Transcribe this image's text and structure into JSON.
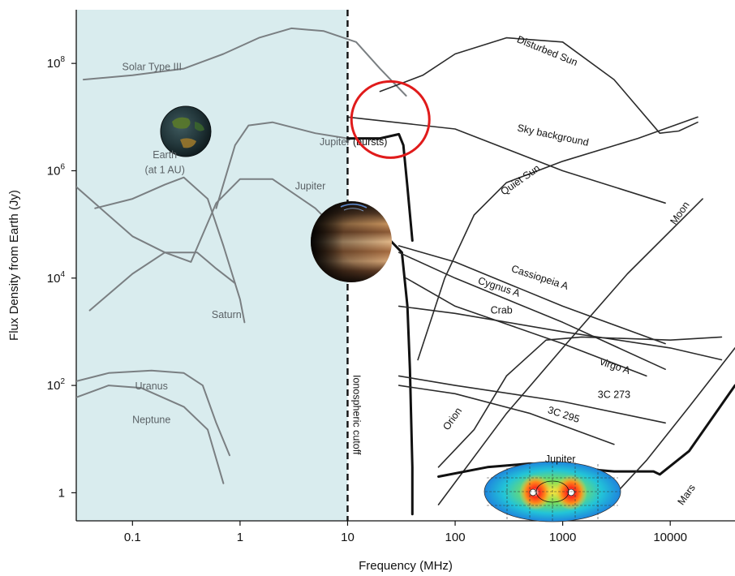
{
  "chart_data": {
    "type": "line",
    "title": "",
    "xlabel": "Frequency (MHz)",
    "ylabel": "Flux Density from Earth (Jy)",
    "x_scale": "log",
    "y_scale": "log",
    "xlim": [
      0.03,
      40000
    ],
    "ylim": [
      0.3,
      1000000000
    ],
    "x_ticks": [
      {
        "value": 0.1,
        "label": "0.1"
      },
      {
        "value": 1,
        "label": "1"
      },
      {
        "value": 10,
        "label": "10"
      },
      {
        "value": 100,
        "label": "100"
      },
      {
        "value": 1000,
        "label": "1000"
      },
      {
        "value": 10000,
        "label": "10000"
      }
    ],
    "y_ticks": [
      {
        "value": 1,
        "label": "1",
        "exp": ""
      },
      {
        "value": 100,
        "label": "10",
        "exp": "2"
      },
      {
        "value": 10000,
        "label": "10",
        "exp": "4"
      },
      {
        "value": 1000000,
        "label": "10",
        "exp": "6"
      },
      {
        "value": 100000000,
        "label": "10",
        "exp": "8"
      }
    ],
    "shaded_region": {
      "x": [
        0.03,
        10
      ],
      "color": "#d9ecee"
    },
    "cutoff": {
      "x": 10,
      "label": "Ionospheric cutoff"
    },
    "highlight_circle": {
      "x": 25,
      "y": 9000000,
      "color": "#e01b1b"
    },
    "series": [
      {
        "name": "Solar Type III",
        "style": "gray",
        "points": [
          [
            0.035,
            50000000
          ],
          [
            0.1,
            60000000
          ],
          [
            0.3,
            80000000
          ],
          [
            0.7,
            150000000
          ],
          [
            1.5,
            300000000
          ],
          [
            3,
            450000000
          ],
          [
            6,
            400000000
          ],
          [
            12,
            250000000
          ],
          [
            20,
            80000000
          ],
          [
            35,
            25000000
          ]
        ]
      },
      {
        "name": "Earth (at 1 AU)",
        "style": "gray",
        "points": [
          [
            0.045,
            200000
          ],
          [
            0.1,
            300000
          ],
          [
            0.2,
            550000
          ],
          [
            0.3,
            750000
          ],
          [
            0.5,
            300000
          ],
          [
            0.7,
            40000
          ],
          [
            1,
            4000
          ],
          [
            1.1,
            1500
          ]
        ]
      },
      {
        "name": "Saturn",
        "style": "gray",
        "points": [
          [
            0.04,
            2500
          ],
          [
            0.1,
            12000
          ],
          [
            0.2,
            30000
          ],
          [
            0.4,
            30000
          ],
          [
            0.6,
            15000
          ],
          [
            0.9,
            8000
          ]
        ]
      },
      {
        "name": "Uranus",
        "style": "gray",
        "points": [
          [
            0.03,
            120
          ],
          [
            0.06,
            170
          ],
          [
            0.15,
            190
          ],
          [
            0.3,
            170
          ],
          [
            0.45,
            100
          ],
          [
            0.6,
            20
          ],
          [
            0.8,
            5
          ]
        ]
      },
      {
        "name": "Neptune",
        "style": "gray",
        "points": [
          [
            0.03,
            60
          ],
          [
            0.06,
            100
          ],
          [
            0.12,
            90
          ],
          [
            0.3,
            40
          ],
          [
            0.5,
            15
          ],
          [
            0.7,
            1.5
          ]
        ]
      },
      {
        "name": "Jupiter (bursts)",
        "style": "gray",
        "points": [
          [
            0.6,
            200000
          ],
          [
            0.9,
            3000000
          ],
          [
            1.2,
            7000000
          ],
          [
            2,
            8000000
          ],
          [
            5,
            5000000
          ],
          [
            10,
            4000000
          ],
          [
            20,
            4000000
          ]
        ]
      },
      {
        "name": "Jupiter",
        "style": "gray",
        "points": [
          [
            0.03,
            500000
          ],
          [
            0.1,
            60000
          ],
          [
            0.2,
            30000
          ],
          [
            0.35,
            20000
          ],
          [
            0.6,
            250000
          ],
          [
            1,
            700000
          ],
          [
            2,
            700000
          ],
          [
            5,
            200000
          ],
          [
            10,
            50000
          ],
          [
            16,
            40000
          ]
        ]
      },
      {
        "name": "Jupiter (bursts)",
        "style": "bold",
        "points": [
          [
            10,
            4000000
          ],
          [
            20,
            4000000
          ],
          [
            30,
            4800000
          ],
          [
            33,
            3000000
          ],
          [
            36,
            500000
          ],
          [
            40,
            50000
          ]
        ]
      },
      {
        "name": "Jupiter",
        "style": "bold",
        "points": [
          [
            16,
            40000
          ],
          [
            25,
            50000
          ],
          [
            32,
            30000
          ],
          [
            36,
            3000
          ],
          [
            38,
            200
          ],
          [
            40,
            3
          ],
          [
            40,
            0.4
          ]
        ]
      },
      {
        "name": "Disturbed Sun",
        "style": "dark",
        "points": [
          [
            20,
            30000000
          ],
          [
            50,
            60000000
          ],
          [
            100,
            150000000
          ],
          [
            300,
            300000000
          ],
          [
            1000,
            250000000
          ],
          [
            3000,
            50000000
          ],
          [
            8000,
            5000000
          ],
          [
            12000,
            5500000
          ],
          [
            18000,
            8000000
          ]
        ]
      },
      {
        "name": "Sky background",
        "style": "dark",
        "points": [
          [
            10,
            10000000
          ],
          [
            100,
            6000000
          ],
          [
            1000,
            1000000
          ],
          [
            9000,
            250000
          ]
        ]
      },
      {
        "name": "Quiet Sun",
        "style": "dark",
        "points": [
          [
            45,
            300
          ],
          [
            80,
            10000
          ],
          [
            150,
            150000
          ],
          [
            300,
            600000
          ],
          [
            1000,
            1500000
          ],
          [
            5000,
            4000000
          ],
          [
            18000,
            10000000
          ]
        ]
      },
      {
        "name": "Moon",
        "style": "dark",
        "points": [
          [
            70,
            0.6
          ],
          [
            300,
            30
          ],
          [
            1000,
            500
          ],
          [
            4000,
            12000
          ],
          [
            20000,
            300000
          ]
        ]
      },
      {
        "name": "Cassiopeia A",
        "style": "dark",
        "points": [
          [
            30,
            40000
          ],
          [
            100,
            20000
          ],
          [
            1000,
            3000
          ],
          [
            9000,
            600
          ]
        ]
      },
      {
        "name": "Cygnus A",
        "style": "dark",
        "points": [
          [
            30,
            30000
          ],
          [
            100,
            10000
          ],
          [
            1000,
            1500
          ],
          [
            9000,
            200
          ]
        ]
      },
      {
        "name": "Crab",
        "style": "dark",
        "points": [
          [
            30,
            3000
          ],
          [
            100,
            2200
          ],
          [
            1000,
            1000
          ],
          [
            10000,
            500
          ],
          [
            30000,
            300
          ]
        ]
      },
      {
        "name": "virgo A",
        "style": "dark",
        "points": [
          [
            35,
            10000
          ],
          [
            100,
            3000
          ],
          [
            1000,
            600
          ],
          [
            6000,
            150
          ]
        ]
      },
      {
        "name": "3C 273",
        "style": "dark",
        "points": [
          [
            30,
            150
          ],
          [
            100,
            100
          ],
          [
            1000,
            50
          ],
          [
            9000,
            20
          ]
        ]
      },
      {
        "name": "3C 295",
        "style": "dark",
        "points": [
          [
            30,
            100
          ],
          [
            100,
            70
          ],
          [
            500,
            30
          ],
          [
            3000,
            8
          ]
        ]
      },
      {
        "name": "Orion",
        "style": "dark",
        "points": [
          [
            70,
            3
          ],
          [
            150,
            15
          ],
          [
            300,
            150
          ],
          [
            700,
            700
          ],
          [
            1500,
            800
          ],
          [
            10000,
            700
          ],
          [
            30000,
            800
          ]
        ]
      },
      {
        "name": "Jupiter",
        "style": "bold",
        "points": [
          [
            70,
            2
          ],
          [
            200,
            3
          ],
          [
            500,
            3.5
          ],
          [
            1000,
            3
          ],
          [
            3000,
            2.5
          ],
          [
            7000,
            2.5
          ],
          [
            8000,
            2.2
          ],
          [
            15000,
            6
          ],
          [
            40000,
            100
          ]
        ]
      },
      {
        "name": "Mars",
        "style": "dark",
        "points": [
          [
            2500,
            0.6
          ],
          [
            6000,
            4
          ],
          [
            15000,
            40
          ],
          [
            40000,
            500
          ]
        ]
      }
    ],
    "labels": [
      {
        "text": "Solar Type III",
        "x": 0.08,
        "y": 75000000,
        "rot": 0,
        "anchor": "start",
        "style": "gray"
      },
      {
        "text": "Earth",
        "x": 0.2,
        "y": 1700000,
        "rot": 0,
        "anchor": "middle",
        "style": "gray"
      },
      {
        "text": "(at 1 AU)",
        "x": 0.2,
        "y": 900000,
        "rot": 0,
        "anchor": "middle",
        "style": "gray"
      },
      {
        "text": "Jupiter",
        "x": 4.5,
        "y": 450000,
        "rot": 0,
        "anchor": "middle",
        "style": "gray"
      },
      {
        "text": "Saturn",
        "x": 0.75,
        "y": 1800,
        "rot": 0,
        "anchor": "middle",
        "style": "gray"
      },
      {
        "text": "Uranus",
        "x": 0.15,
        "y": 85,
        "rot": 0,
        "anchor": "middle",
        "style": "gray"
      },
      {
        "text": "Neptune",
        "x": 0.15,
        "y": 20,
        "rot": 0,
        "anchor": "middle",
        "style": "gray"
      },
      {
        "text": "Jupiter (bursts)",
        "x": 5.5,
        "y": 3000000,
        "rot": 0,
        "anchor": "start",
        "style": "mixed"
      },
      {
        "text": "Disturbed Sun",
        "x": 700,
        "y": 150000000,
        "rot": 22,
        "anchor": "middle",
        "style": "dark"
      },
      {
        "text": "Sky background",
        "x": 800,
        "y": 4000000,
        "rot": 12,
        "anchor": "middle",
        "style": "dark"
      },
      {
        "text": "Quiet Sun",
        "x": 420,
        "y": 600000,
        "rot": -35,
        "anchor": "middle",
        "style": "dark"
      },
      {
        "text": "Moon",
        "x": 13000,
        "y": 150000,
        "rot": -55,
        "anchor": "middle",
        "style": "dark"
      },
      {
        "text": "Cassiopeia A",
        "x": 600,
        "y": 9000,
        "rot": 18,
        "anchor": "middle",
        "style": "dark"
      },
      {
        "text": "Cygnus A",
        "x": 250,
        "y": 6000,
        "rot": 18,
        "anchor": "middle",
        "style": "dark"
      },
      {
        "text": "Crab",
        "x": 270,
        "y": 2200,
        "rot": 0,
        "anchor": "middle",
        "style": "dark"
      },
      {
        "text": "virgo A",
        "x": 3000,
        "y": 200,
        "rot": 18,
        "anchor": "middle",
        "style": "dark"
      },
      {
        "text": "3C 273",
        "x": 3000,
        "y": 58,
        "rot": 0,
        "anchor": "middle",
        "style": "dark"
      },
      {
        "text": "3C 295",
        "x": 1000,
        "y": 25,
        "rot": 18,
        "anchor": "middle",
        "style": "dark"
      },
      {
        "text": "Orion",
        "x": 100,
        "y": 22,
        "rot": -55,
        "anchor": "middle",
        "style": "dark"
      },
      {
        "text": "Jupiter",
        "x": 950,
        "y": 3.7,
        "rot": 0,
        "anchor": "middle",
        "style": "dark"
      },
      {
        "text": "Mars",
        "x": 15000,
        "y": 0.85,
        "rot": -55,
        "anchor": "middle",
        "style": "dark"
      }
    ]
  }
}
